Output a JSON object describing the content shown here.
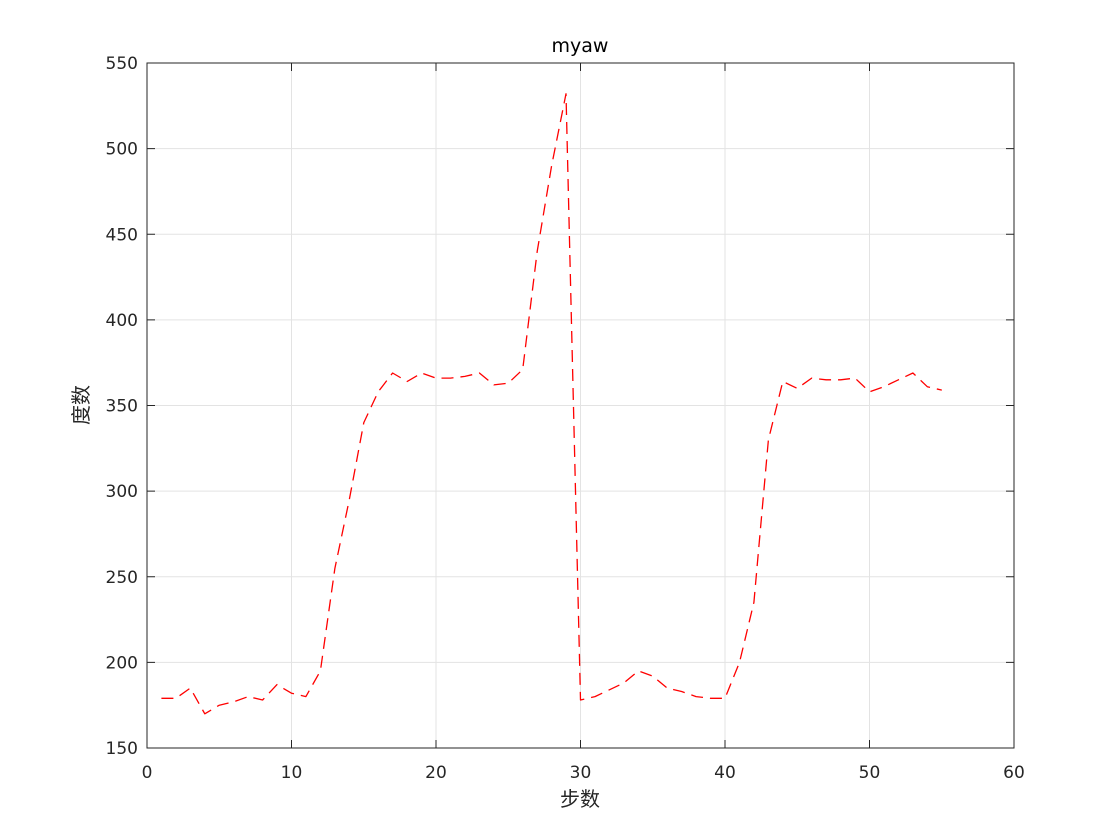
{
  "chart_data": {
    "type": "line",
    "title": "myaw",
    "xlabel": "步数",
    "ylabel": "度数",
    "xlim": [
      0,
      60
    ],
    "ylim": [
      150,
      550
    ],
    "xticks": [
      0,
      10,
      20,
      30,
      40,
      50,
      60
    ],
    "yticks": [
      150,
      200,
      250,
      300,
      350,
      400,
      450,
      500,
      550
    ],
    "grid": true,
    "line_style": "dashed",
    "series": [
      {
        "color": "#ff0000",
        "x": [
          1,
          2,
          3,
          4,
          5,
          6,
          7,
          8,
          9,
          10,
          11,
          12,
          13,
          14,
          15,
          16,
          17,
          18,
          19,
          20,
          21,
          22,
          23,
          24,
          25,
          26,
          27,
          28,
          29,
          30,
          31,
          32,
          33,
          34,
          35,
          36,
          37,
          38,
          39,
          40,
          41,
          42,
          43,
          44,
          45,
          46,
          47,
          48,
          49,
          50,
          51,
          52,
          53,
          54,
          55
        ],
        "y": [
          179,
          179,
          185,
          170,
          175,
          177,
          180,
          178,
          187,
          182,
          180,
          195,
          255,
          295,
          340,
          358,
          369,
          364,
          369,
          366,
          366,
          367,
          369,
          362,
          363,
          371,
          440,
          490,
          532,
          178,
          180,
          184,
          188,
          195,
          192,
          185,
          183,
          180,
          179,
          179,
          200,
          235,
          330,
          364,
          360,
          366,
          365,
          365,
          366,
          358,
          361,
          365,
          369,
          361,
          359
        ]
      }
    ]
  }
}
